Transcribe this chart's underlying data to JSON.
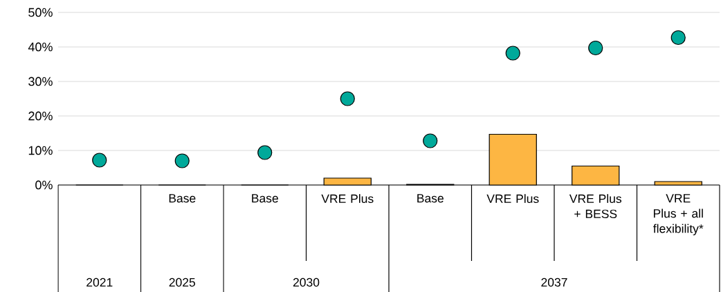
{
  "chart_data": {
    "type": "bar",
    "categories": [
      null,
      "Base",
      "Base",
      "VRE Plus",
      "Base",
      "VRE Plus",
      "VRE Plus + BESS",
      "VRE Plus + all flexibility*"
    ],
    "series": [
      {
        "color": "#fdb643",
        "values": [
          0,
          0,
          0,
          2.0,
          0.2,
          14.7,
          5.5,
          1.0
        ]
      },
      {
        "type": "scatter",
        "color": "#00a99a",
        "marker": "circle",
        "values": [
          7.2,
          7.0,
          9.4,
          25.0,
          12.8,
          38.2,
          39.7,
          42.7
        ]
      }
    ],
    "ylim": [
      0,
      50
    ],
    "yticks": [
      {
        "value": 0,
        "label": "0%"
      },
      {
        "value": 10,
        "label": "10%"
      },
      {
        "value": 20,
        "label": "20%"
      },
      {
        "value": 30,
        "label": "30%"
      },
      {
        "value": 40,
        "label": "40%"
      },
      {
        "value": 50,
        "label": "50%"
      }
    ],
    "grid": "y",
    "annotations": [
      "2021",
      "2025",
      "2030",
      "2037"
    ]
  }
}
